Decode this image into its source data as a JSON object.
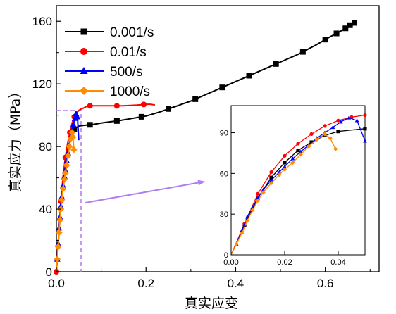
{
  "chart_data": {
    "type": "line",
    "title": "",
    "xlabel": "真实应变",
    "ylabel": "真实应力（MPa）",
    "xlim": [
      0,
      0.72
    ],
    "ylim": [
      0,
      170
    ],
    "x_ticks": [
      "0.0",
      "0.2",
      "0.4",
      "0.6"
    ],
    "y_ticks": [
      "0",
      "40",
      "80",
      "120",
      "160"
    ],
    "grid": false,
    "legend_position": "top-left",
    "series": [
      {
        "name": "0.001/s",
        "color": "#000000",
        "marker": "square",
        "x": [
          0.0,
          0.005,
          0.01,
          0.015,
          0.02,
          0.025,
          0.03,
          0.035,
          0.04,
          0.05,
          0.06,
          0.08,
          0.1,
          0.12,
          0.14,
          0.16,
          0.18,
          0.2,
          0.23,
          0.26,
          0.3,
          0.34,
          0.38,
          0.42,
          0.46,
          0.5,
          0.54,
          0.58,
          0.61,
          0.63,
          0.645,
          0.655,
          0.665,
          0.67
        ],
        "y": [
          0,
          22,
          42,
          57,
          68,
          77,
          83,
          88,
          91,
          93,
          93.5,
          94,
          95,
          95.8,
          96.5,
          97.5,
          98.5,
          99.5,
          102,
          105,
          109,
          114,
          119,
          124,
          129,
          134,
          139,
          145,
          150,
          153,
          155.5,
          157.5,
          159,
          159
        ],
        "marker_x": [
          0.04,
          0.075,
          0.135,
          0.19,
          0.25,
          0.31,
          0.37,
          0.43,
          0.49,
          0.55,
          0.6,
          0.625,
          0.645,
          0.655,
          0.665
        ]
      },
      {
        "name": "0.01/s",
        "color": "#ff0000",
        "marker": "circle",
        "x": [
          0.0,
          0.005,
          0.01,
          0.015,
          0.02,
          0.025,
          0.03,
          0.035,
          0.04,
          0.045,
          0.05,
          0.055,
          0.06,
          0.07,
          0.09,
          0.12,
          0.15,
          0.18,
          0.2,
          0.21,
          0.22
        ],
        "y": [
          0,
          23,
          45,
          61,
          73,
          82,
          89,
          95,
          99,
          101.5,
          103,
          104,
          104.5,
          106,
          106,
          106,
          106,
          106.5,
          107,
          107,
          106.5
        ],
        "marker_x": [
          0.0,
          0.01,
          0.02,
          0.03,
          0.04,
          0.075,
          0.135,
          0.195
        ]
      },
      {
        "name": "500/s",
        "color": "#0000ff",
        "marker": "triangle",
        "x": [
          0.0,
          0.002,
          0.004,
          0.006,
          0.008,
          0.01,
          0.012,
          0.015,
          0.018,
          0.02,
          0.023,
          0.026,
          0.029,
          0.032,
          0.035,
          0.038,
          0.041,
          0.044,
          0.047,
          0.05
        ],
        "y": [
          0,
          8,
          18,
          28,
          35,
          42,
          48,
          55,
          61,
          65,
          71,
          76,
          81,
          86,
          90,
          94,
          98,
          101,
          99,
          84
        ],
        "marker_x": [
          0.002,
          0.004,
          0.006,
          0.008,
          0.01,
          0.012,
          0.015,
          0.018,
          0.02,
          0.023,
          0.026,
          0.029,
          0.032,
          0.035,
          0.038,
          0.041,
          0.044,
          0.047
        ]
      },
      {
        "name": "1000/s",
        "color": "#ff8c00",
        "marker": "diamond",
        "x": [
          0.0,
          0.002,
          0.004,
          0.006,
          0.008,
          0.01,
          0.012,
          0.015,
          0.018,
          0.02,
          0.023,
          0.026,
          0.029,
          0.032,
          0.035,
          0.037,
          0.039
        ],
        "y": [
          0,
          8,
          16,
          25,
          33,
          40,
          46,
          53,
          59,
          63,
          68,
          74,
          80,
          85,
          89,
          86,
          78
        ],
        "marker_x": [
          0.002,
          0.004,
          0.006,
          0.008,
          0.01,
          0.012,
          0.015,
          0.018,
          0.02,
          0.023,
          0.026,
          0.029,
          0.032,
          0.035,
          0.037,
          0.039
        ]
      }
    ],
    "inset": {
      "xlim": [
        0,
        0.05
      ],
      "ylim": [
        0,
        110
      ],
      "x_ticks": [
        "0.00",
        "0.02",
        "0.04"
      ],
      "y_ticks": [
        "0",
        "30",
        "60",
        "90"
      ],
      "x_tick_values": [
        0,
        0.02,
        0.04
      ],
      "y_tick_values": [
        0,
        30,
        60,
        90
      ]
    },
    "zoom_box": {
      "x_max": 0.055,
      "y_max": 103,
      "color": "#b07cf0"
    }
  }
}
